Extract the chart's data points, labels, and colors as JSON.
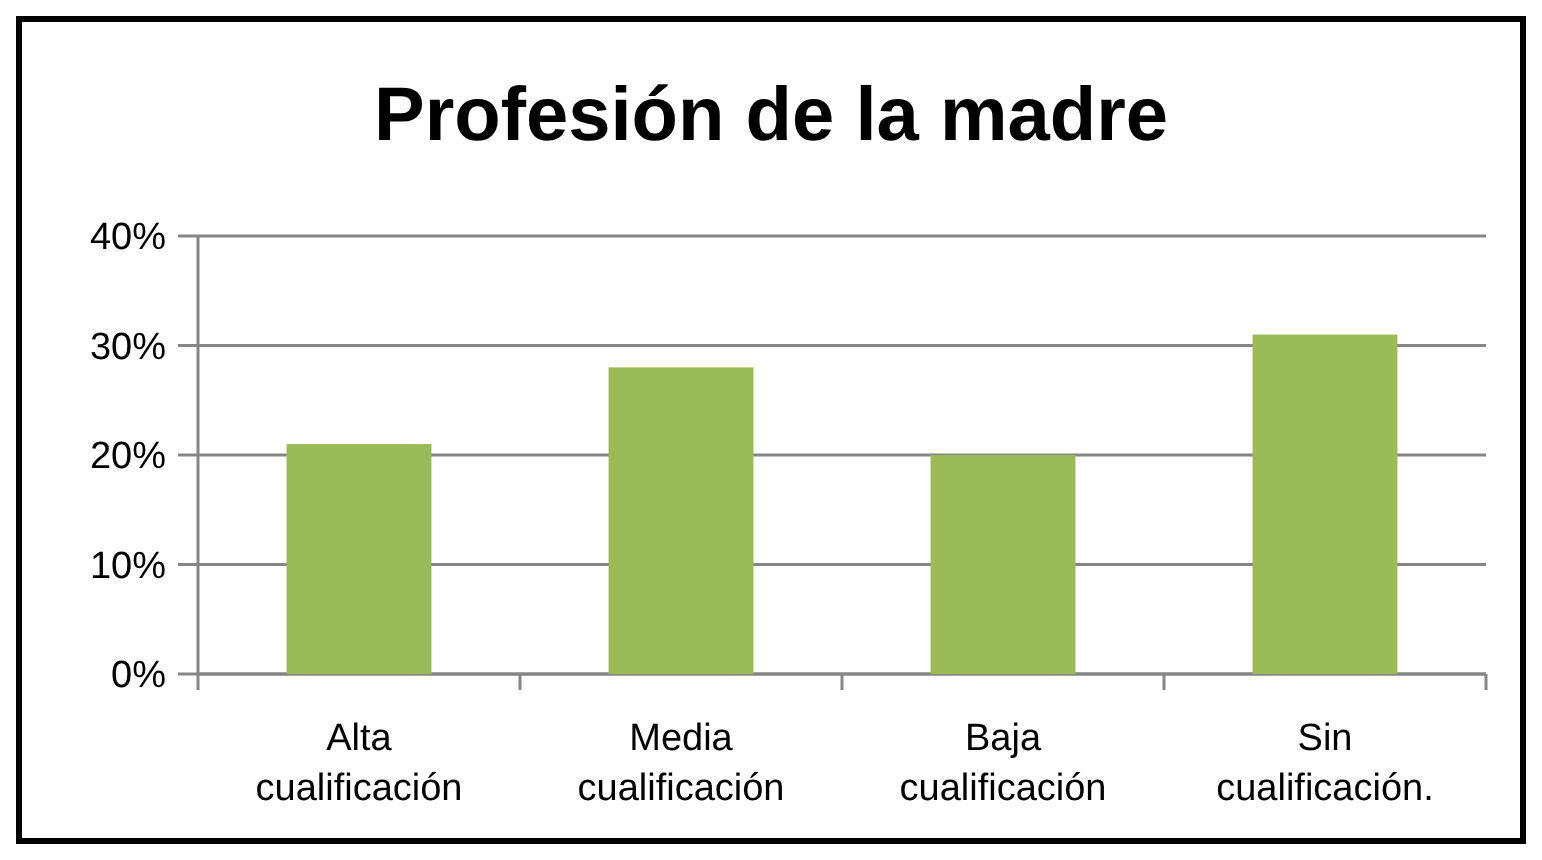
{
  "chart_data": {
    "type": "bar",
    "title": "Profesión de la madre",
    "categories": [
      "Alta\ncualificación",
      "Media\ncualificación",
      "Baja\ncualificación",
      "Sin\ncualificación."
    ],
    "values": [
      21,
      28,
      20,
      31
    ],
    "color": "#9bbb59",
    "ylim": [
      0,
      40
    ],
    "yticks": [
      {
        "value": 0,
        "label": "0%"
      },
      {
        "value": 10,
        "label": "10%"
      },
      {
        "value": 20,
        "label": "20%"
      },
      {
        "value": 30,
        "label": "30%"
      },
      {
        "value": 40,
        "label": "40%"
      }
    ],
    "grid": "y"
  }
}
